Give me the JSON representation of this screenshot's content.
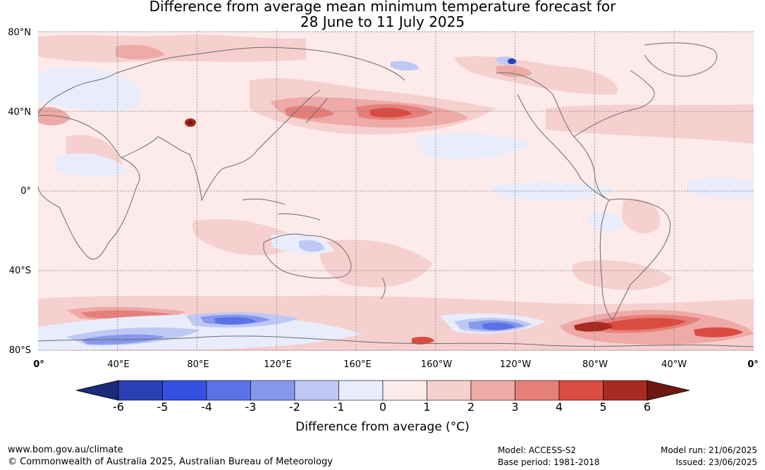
{
  "title_line1": "Difference from average mean minimum temperature forecast for",
  "title_line2": "28 June to 11 July 2025",
  "lat_labels": [
    "80°N",
    "40°N",
    "0°",
    "40°S",
    "80°S"
  ],
  "lon_labels": [
    "0°",
    "40°E",
    "80°E",
    "120°E",
    "160°E",
    "160°W",
    "120°W",
    "80°W",
    "40°W",
    "0°"
  ],
  "colorbar": {
    "ticks": [
      "-6",
      "-5",
      "-4",
      "-3",
      "-2",
      "-1",
      "0",
      "1",
      "2",
      "3",
      "4",
      "5",
      "6"
    ],
    "colors": [
      "#1c2a7a",
      "#2a3fb4",
      "#3350e0",
      "#5a72e6",
      "#8797ec",
      "#bec8f4",
      "#e9ecfb",
      "#fdeaea",
      "#f5d0cf",
      "#edaaa6",
      "#e67f79",
      "#da4c40",
      "#a82a22",
      "#6e1712"
    ],
    "label": "Difference from average (°C)"
  },
  "footer": {
    "website": "www.bom.gov.au/climate",
    "copyright": "© Commonwealth of Australia 2025, Australian Bureau of Meteorology",
    "model": "Model: ACCESS-S2",
    "base_period": "Base period: 1981-2018",
    "model_run": "Model run: 21/06/2025",
    "issued": "Issued: 23/06/2025"
  }
}
